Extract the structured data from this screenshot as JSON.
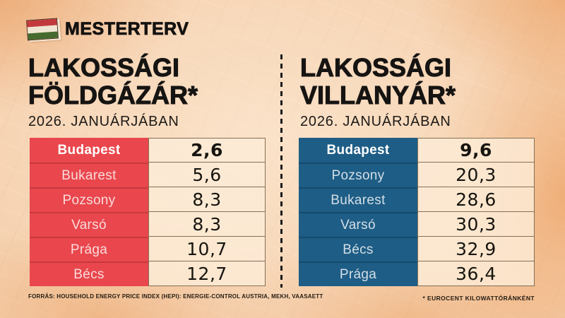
{
  "brand": {
    "name": "MESTERTERV"
  },
  "colors": {
    "background": "#f7d5b4",
    "gas_accent": "#e9474d",
    "electricity_accent": "#1e5d85",
    "value_cell": "#f9e3ca",
    "text": "#161412"
  },
  "left_panel": {
    "title_line1": "LAKOSSÁGI",
    "title_line2": "FÖLDGÁZÁR*",
    "subtitle": "2026. JANUÁRJÁBAN",
    "rows": [
      {
        "city": "Budapest",
        "value": "2,6"
      },
      {
        "city": "Bukarest",
        "value": "5,6"
      },
      {
        "city": "Pozsony",
        "value": "8,3"
      },
      {
        "city": "Varsó",
        "value": "8,3"
      },
      {
        "city": "Prága",
        "value": "10,7"
      },
      {
        "city": "Bécs",
        "value": "12,7"
      }
    ]
  },
  "right_panel": {
    "title_line1": "LAKOSSÁGI",
    "title_line2": "VILLANYÁR*",
    "subtitle": "2026. JANUÁRJÁBAN",
    "rows": [
      {
        "city": "Budapest",
        "value": "9,6"
      },
      {
        "city": "Pozsony",
        "value": "20,3"
      },
      {
        "city": "Bukarest",
        "value": "28,6"
      },
      {
        "city": "Varsó",
        "value": "30,3"
      },
      {
        "city": "Bécs",
        "value": "32,9"
      },
      {
        "city": "Prága",
        "value": "36,4"
      }
    ]
  },
  "footer": {
    "source_label": "FORRÁS:",
    "source_text": " HOUSEHOLD ENERGY PRICE INDEX (HEPI): ENERGIE-CONTROL AUSTRIA, MEKH, VAASAETT",
    "unit_note": "* EUROCENT KILOWATTÓRÁNKÉNT"
  },
  "chart_data": [
    {
      "type": "table",
      "title": "LAKOSSÁGI FÖLDGÁZÁR* — 2026. JANUÁRJÁBAN",
      "unit": "eurocent / kilowattóra (per footnote: * EUROCENT KILOWATTÓRÁNKÉNT)",
      "categories": [
        "Budapest",
        "Bukarest",
        "Pozsony",
        "Varsó",
        "Prága",
        "Bécs"
      ],
      "values": [
        2.6,
        5.6,
        8.3,
        8.3,
        10.7,
        12.7
      ],
      "highlight_row": "Budapest",
      "accent_color": "#e9474d"
    },
    {
      "type": "table",
      "title": "LAKOSSÁGI VILLANYÁR* — 2026. JANUÁRJÁBAN",
      "unit": "eurocent / kilowattóra (per footnote: * EUROCENT KILOWATTÓRÁNKÉNT)",
      "categories": [
        "Budapest",
        "Pozsony",
        "Bukarest",
        "Varsó",
        "Bécs",
        "Prága"
      ],
      "values": [
        9.6,
        20.3,
        28.6,
        30.3,
        32.9,
        36.4
      ],
      "highlight_row": "Budapest",
      "accent_color": "#1e5d85"
    }
  ]
}
